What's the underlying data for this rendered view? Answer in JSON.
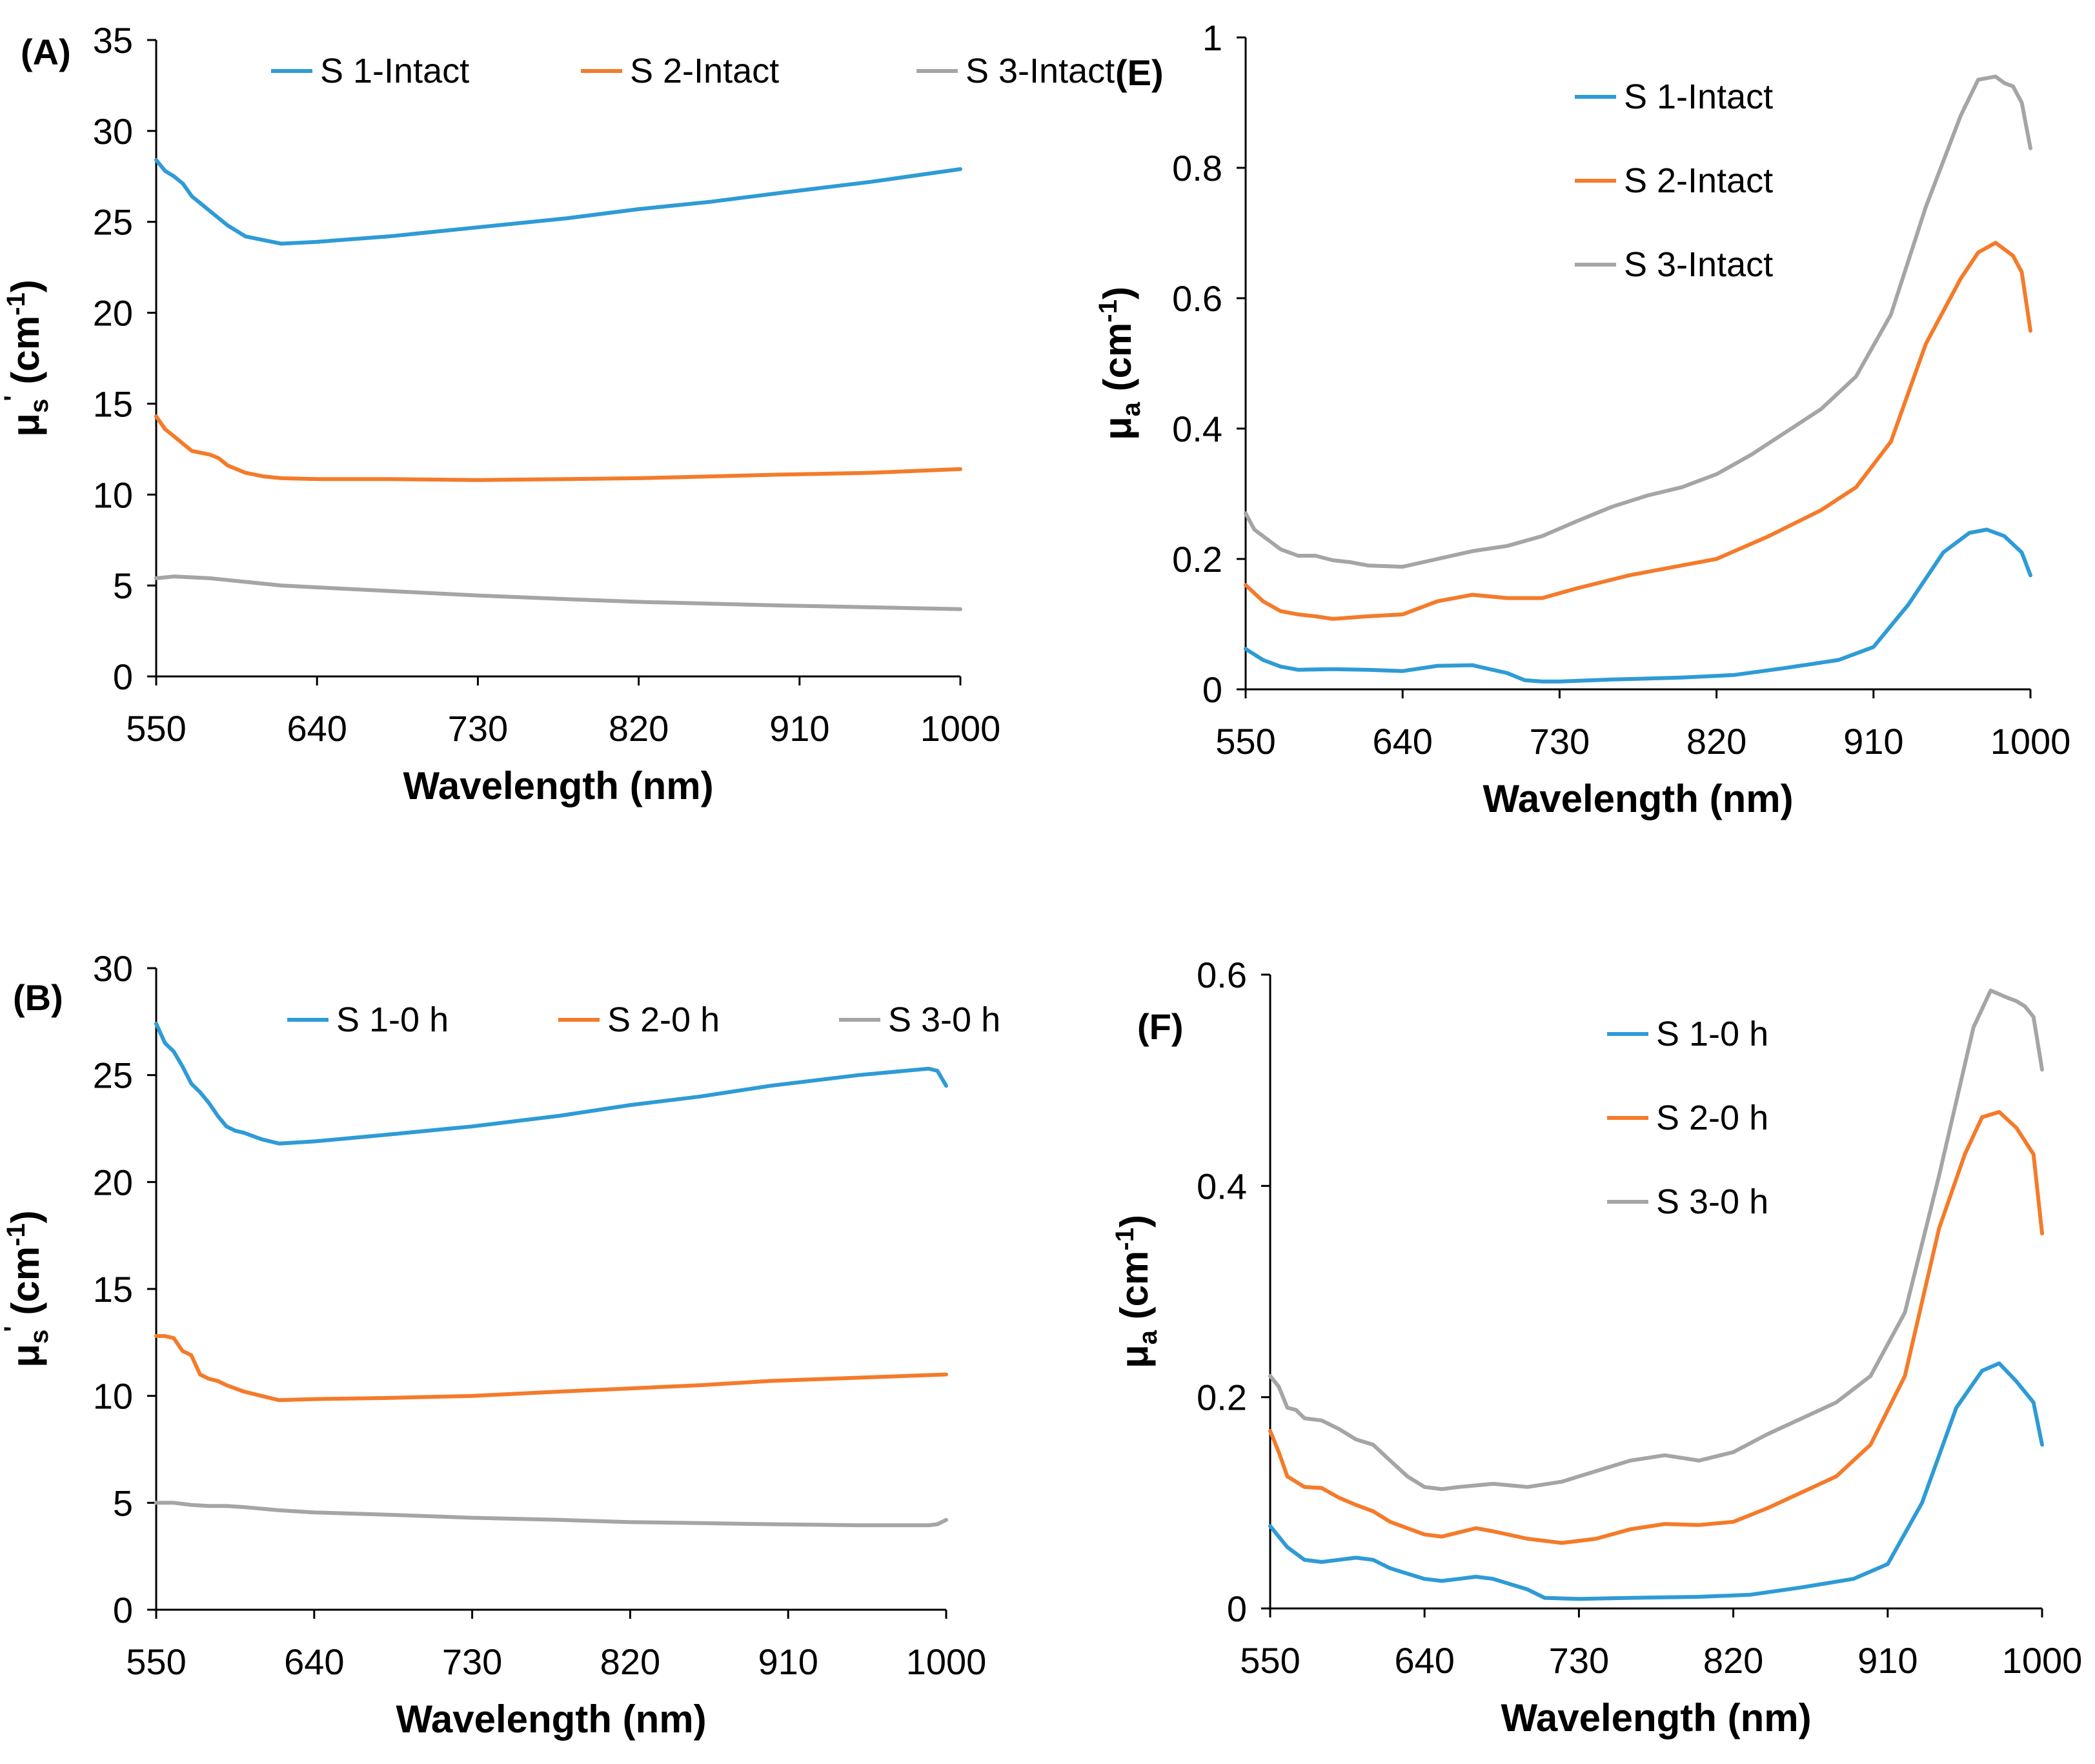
{
  "colors": {
    "s1": "#2e9bd6",
    "s2": "#f47b2a",
    "s3": "#a5a5a5",
    "axis": "#000000"
  },
  "chart_data": [
    {
      "id": "A",
      "panel_label": "(A)",
      "type": "line",
      "title": "",
      "xlabel": "Wavelength (nm)",
      "ylabel": {
        "mu": "μ",
        "sub": "s",
        "sup": "'",
        "unit": " (cm",
        "unit_sup": "-1",
        "close": ")"
      },
      "xlim": [
        550,
        1000
      ],
      "ylim": [
        0,
        35
      ],
      "xticks": [
        "550",
        "640",
        "730",
        "820",
        "910",
        "1000"
      ],
      "yticks": [
        "0",
        "5",
        "10",
        "15",
        "20",
        "25",
        "30",
        "35"
      ],
      "legend_position": "top",
      "legend_layout": "row",
      "series": [
        {
          "name": "S 1-Intact",
          "color": "#2e9bd6",
          "x": [
            550,
            555,
            560,
            565,
            570,
            575,
            580,
            585,
            590,
            595,
            600,
            610,
            620,
            640,
            680,
            730,
            780,
            820,
            860,
            900,
            950,
            1000
          ],
          "y": [
            28.4,
            27.8,
            27.5,
            27.1,
            26.4,
            26.0,
            25.6,
            25.2,
            24.8,
            24.5,
            24.2,
            24.0,
            23.8,
            23.9,
            24.2,
            24.7,
            25.2,
            25.7,
            26.1,
            26.6,
            27.2,
            27.9
          ]
        },
        {
          "name": "S 2-Intact",
          "color": "#f47b2a",
          "x": [
            550,
            555,
            560,
            565,
            570,
            575,
            580,
            585,
            590,
            600,
            610,
            620,
            640,
            680,
            730,
            780,
            820,
            860,
            900,
            950,
            1000
          ],
          "y": [
            14.3,
            13.6,
            13.2,
            12.8,
            12.4,
            12.3,
            12.2,
            12.0,
            11.6,
            11.2,
            11.0,
            10.9,
            10.85,
            10.85,
            10.8,
            10.85,
            10.9,
            11.0,
            11.1,
            11.2,
            11.4
          ]
        },
        {
          "name": "S 3-Intact",
          "color": "#a5a5a5",
          "x": [
            550,
            560,
            570,
            580,
            590,
            600,
            620,
            640,
            680,
            730,
            780,
            820,
            860,
            900,
            950,
            1000
          ],
          "y": [
            5.4,
            5.5,
            5.45,
            5.4,
            5.3,
            5.2,
            5.0,
            4.9,
            4.7,
            4.45,
            4.25,
            4.1,
            4.0,
            3.9,
            3.8,
            3.7
          ]
        }
      ]
    },
    {
      "id": "E",
      "panel_label": "(E)",
      "type": "line",
      "title": "",
      "xlabel": "Wavelength (nm)",
      "ylabel": {
        "mu": "μ",
        "sub": "a",
        "sup": "",
        "unit": " (cm",
        "unit_sup": "-1",
        "close": ")"
      },
      "xlim": [
        550,
        1000
      ],
      "ylim": [
        0,
        1
      ],
      "xticks": [
        "550",
        "640",
        "730",
        "820",
        "910",
        "1000"
      ],
      "yticks": [
        "0",
        "0.2",
        "0.4",
        "0.6",
        "0.8",
        "1"
      ],
      "legend_position": "top-left",
      "legend_layout": "column",
      "series": [
        {
          "name": "S 1-Intact",
          "color": "#2e9bd6",
          "x": [
            550,
            560,
            570,
            580,
            600,
            620,
            640,
            660,
            680,
            700,
            710,
            720,
            730,
            760,
            800,
            830,
            860,
            890,
            910,
            930,
            950,
            965,
            975,
            985,
            995,
            1000
          ],
          "y": [
            0.062,
            0.045,
            0.035,
            0.03,
            0.031,
            0.03,
            0.028,
            0.036,
            0.037,
            0.025,
            0.014,
            0.012,
            0.012,
            0.015,
            0.018,
            0.022,
            0.033,
            0.045,
            0.065,
            0.13,
            0.21,
            0.24,
            0.245,
            0.235,
            0.21,
            0.175
          ]
        },
        {
          "name": "S 2-Intact",
          "color": "#f47b2a",
          "x": [
            550,
            560,
            570,
            580,
            590,
            600,
            610,
            620,
            640,
            660,
            680,
            700,
            720,
            740,
            770,
            800,
            820,
            850,
            880,
            900,
            920,
            940,
            960,
            970,
            980,
            990,
            995,
            1000
          ],
          "y": [
            0.16,
            0.135,
            0.12,
            0.115,
            0.112,
            0.108,
            0.11,
            0.112,
            0.115,
            0.135,
            0.145,
            0.14,
            0.14,
            0.155,
            0.175,
            0.19,
            0.2,
            0.235,
            0.275,
            0.31,
            0.38,
            0.53,
            0.63,
            0.67,
            0.685,
            0.665,
            0.64,
            0.55
          ]
        },
        {
          "name": "S 3-Intact",
          "color": "#a5a5a5",
          "x": [
            550,
            555,
            560,
            570,
            580,
            590,
            600,
            610,
            620,
            640,
            660,
            680,
            700,
            720,
            740,
            760,
            780,
            800,
            820,
            840,
            860,
            880,
            900,
            920,
            940,
            960,
            970,
            980,
            985,
            990,
            995,
            1000
          ],
          "y": [
            0.27,
            0.245,
            0.235,
            0.215,
            0.205,
            0.205,
            0.198,
            0.195,
            0.19,
            0.188,
            0.2,
            0.212,
            0.22,
            0.235,
            0.258,
            0.28,
            0.297,
            0.31,
            0.33,
            0.36,
            0.395,
            0.43,
            0.48,
            0.575,
            0.74,
            0.88,
            0.935,
            0.94,
            0.93,
            0.925,
            0.9,
            0.83
          ]
        }
      ]
    },
    {
      "id": "B",
      "panel_label": "(B)",
      "type": "line",
      "title": "",
      "xlabel": "Wavelength (nm)",
      "ylabel": {
        "mu": "μ",
        "sub": "s",
        "sup": "'",
        "unit": " (cm",
        "unit_sup": "-1",
        "close": ")"
      },
      "xlim": [
        550,
        1000
      ],
      "ylim": [
        0,
        30
      ],
      "xticks": [
        "550",
        "640",
        "730",
        "820",
        "910",
        "1000"
      ],
      "yticks": [
        "0",
        "5",
        "10",
        "15",
        "20",
        "25",
        "30"
      ],
      "legend_position": "top",
      "legend_layout": "row",
      "series": [
        {
          "name": "S 1-0 h",
          "color": "#2e9bd6",
          "x": [
            550,
            555,
            560,
            565,
            570,
            575,
            580,
            585,
            590,
            595,
            600,
            610,
            620,
            640,
            680,
            730,
            780,
            820,
            860,
            900,
            950,
            990,
            995,
            1000
          ],
          "y": [
            27.4,
            26.5,
            26.1,
            25.4,
            24.6,
            24.2,
            23.7,
            23.1,
            22.6,
            22.4,
            22.3,
            22.0,
            21.8,
            21.9,
            22.2,
            22.6,
            23.1,
            23.6,
            24.0,
            24.5,
            25.0,
            25.3,
            25.2,
            24.5
          ]
        },
        {
          "name": "S 2-0 h",
          "color": "#f47b2a",
          "x": [
            550,
            555,
            560,
            565,
            570,
            575,
            580,
            585,
            590,
            600,
            610,
            620,
            640,
            680,
            730,
            780,
            820,
            860,
            900,
            950,
            1000
          ],
          "y": [
            12.8,
            12.8,
            12.7,
            12.1,
            11.9,
            11.0,
            10.8,
            10.7,
            10.5,
            10.2,
            10.0,
            9.8,
            9.85,
            9.9,
            10.0,
            10.2,
            10.35,
            10.5,
            10.7,
            10.85,
            11.0
          ]
        },
        {
          "name": "S 3-0 h",
          "color": "#a5a5a5",
          "x": [
            550,
            560,
            570,
            580,
            590,
            600,
            620,
            640,
            680,
            730,
            780,
            820,
            860,
            900,
            950,
            990,
            995,
            1000
          ],
          "y": [
            5.0,
            5.0,
            4.9,
            4.85,
            4.85,
            4.8,
            4.65,
            4.55,
            4.45,
            4.3,
            4.2,
            4.1,
            4.05,
            4.0,
            3.95,
            3.95,
            4.0,
            4.2
          ]
        }
      ]
    },
    {
      "id": "F",
      "panel_label": "(F)",
      "type": "line",
      "title": "",
      "xlabel": "Wavelength (nm)",
      "ylabel": {
        "mu": "μ",
        "sub": "a",
        "sup": "",
        "unit": " (cm",
        "unit_sup": "-1",
        "close": ")"
      },
      "xlim": [
        550,
        1000
      ],
      "ylim": [
        0,
        0.6
      ],
      "xticks": [
        "550",
        "640",
        "730",
        "820",
        "910",
        "1000"
      ],
      "yticks": [
        "0",
        "0.2",
        "0.4",
        "0.6"
      ],
      "legend_position": "top-left",
      "legend_layout": "column",
      "series": [
        {
          "name": "S 1-0 h",
          "color": "#2e9bd6",
          "x": [
            550,
            560,
            570,
            580,
            590,
            600,
            610,
            620,
            640,
            650,
            660,
            670,
            680,
            700,
            710,
            730,
            760,
            800,
            830,
            860,
            890,
            910,
            930,
            950,
            965,
            975,
            985,
            995,
            1000
          ],
          "y": [
            0.078,
            0.058,
            0.046,
            0.044,
            0.046,
            0.048,
            0.046,
            0.038,
            0.028,
            0.026,
            0.028,
            0.03,
            0.028,
            0.018,
            0.01,
            0.009,
            0.01,
            0.011,
            0.013,
            0.02,
            0.028,
            0.042,
            0.1,
            0.19,
            0.225,
            0.232,
            0.215,
            0.195,
            0.155
          ]
        },
        {
          "name": "S 2-0 h",
          "color": "#f47b2a",
          "x": [
            550,
            555,
            560,
            570,
            580,
            590,
            600,
            610,
            620,
            640,
            650,
            660,
            670,
            680,
            700,
            720,
            740,
            760,
            780,
            800,
            820,
            840,
            860,
            880,
            900,
            920,
            940,
            955,
            965,
            975,
            985,
            995,
            1000
          ],
          "y": [
            0.168,
            0.148,
            0.125,
            0.115,
            0.114,
            0.105,
            0.098,
            0.092,
            0.082,
            0.07,
            0.068,
            0.072,
            0.076,
            0.073,
            0.066,
            0.062,
            0.066,
            0.075,
            0.08,
            0.079,
            0.082,
            0.095,
            0.11,
            0.125,
            0.155,
            0.22,
            0.36,
            0.43,
            0.465,
            0.47,
            0.455,
            0.43,
            0.355
          ]
        },
        {
          "name": "S 3-0 h",
          "color": "#a5a5a5",
          "x": [
            550,
            555,
            560,
            565,
            570,
            580,
            590,
            600,
            610,
            620,
            630,
            640,
            650,
            660,
            680,
            700,
            720,
            740,
            760,
            780,
            800,
            820,
            840,
            860,
            880,
            900,
            920,
            940,
            960,
            970,
            980,
            985,
            990,
            995,
            1000
          ],
          "y": [
            0.22,
            0.21,
            0.19,
            0.188,
            0.18,
            0.178,
            0.17,
            0.16,
            0.155,
            0.14,
            0.125,
            0.115,
            0.113,
            0.115,
            0.118,
            0.115,
            0.12,
            0.13,
            0.14,
            0.145,
            0.14,
            0.148,
            0.165,
            0.18,
            0.195,
            0.22,
            0.28,
            0.41,
            0.55,
            0.585,
            0.578,
            0.575,
            0.57,
            0.56,
            0.51
          ]
        }
      ]
    }
  ]
}
